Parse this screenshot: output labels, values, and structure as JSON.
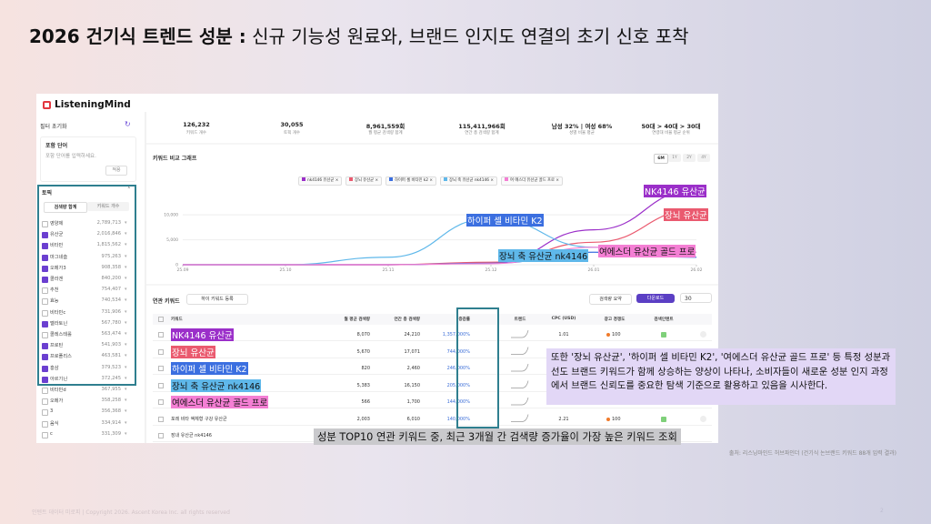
{
  "header": {
    "title_bold": "2026 건기식 트렌드 성분 :",
    "title_rest": "신규 기능성 원료와, 브랜드 인지도 연결의 초기 신호 포착"
  },
  "app": {
    "logo": "ListeningMind",
    "sidebar": {
      "reset": "필터 초기화",
      "include_label": "포함 단어",
      "include_placeholder": "포함 단어를 입력하세요.",
      "apply": "적용",
      "topic_label": "토픽",
      "tabs": [
        "검색량 합계",
        "키워드 개수"
      ],
      "topics": [
        {
          "name": "영양제",
          "value": "2,789,713",
          "checked": false
        },
        {
          "name": "유산균",
          "value": "2,016,846",
          "checked": true
        },
        {
          "name": "비타민",
          "value": "1,815,562",
          "checked": true
        },
        {
          "name": "마그네슘",
          "value": "975,263",
          "checked": true
        },
        {
          "name": "오메가3",
          "value": "908,358",
          "checked": true
        },
        {
          "name": "콜라겐",
          "value": "840,200",
          "checked": true
        },
        {
          "name": "추천",
          "value": "754,407",
          "checked": false
        },
        {
          "name": "효능",
          "value": "740,534",
          "checked": false
        },
        {
          "name": "비타민c",
          "value": "731,906",
          "checked": false
        },
        {
          "name": "멜라토닌",
          "value": "567,780",
          "checked": true
        },
        {
          "name": "콜레스테롤",
          "value": "563,474",
          "checked": false
        },
        {
          "name": "프로틴",
          "value": "541,903",
          "checked": true
        },
        {
          "name": "프로폴리스",
          "value": "463,581",
          "checked": true
        },
        {
          "name": "홍삼",
          "value": "379,523",
          "checked": true
        },
        {
          "name": "아르기닌",
          "value": "372,245",
          "checked": true
        },
        {
          "name": "비타민d",
          "value": "367,955",
          "checked": false
        },
        {
          "name": "오메가",
          "value": "358,258",
          "checked": false
        },
        {
          "name": "3",
          "value": "356,368",
          "checked": false
        },
        {
          "name": "음식",
          "value": "334,914",
          "checked": false
        },
        {
          "name": "c",
          "value": "331,309",
          "checked": false
        }
      ]
    },
    "stats": [
      {
        "value": "126,232",
        "label": "키워드 개수"
      },
      {
        "value": "30,055",
        "label": "토픽 개수"
      },
      {
        "value": "8,961,559회",
        "label": "월 평균 검색량 합계"
      },
      {
        "value": "115,411,966회",
        "label": "연간 총 검색량 합계"
      },
      {
        "value": "남성 32% | 여성 68%",
        "label": "성별 비율 평균"
      },
      {
        "value": "50대 > 40대 > 30대",
        "label": "연령대 비율 평균 순위"
      }
    ],
    "table": {
      "title": "연관 키워드",
      "register_button": "하이 키워드 등록",
      "summary_button": "검색량 요약",
      "download_button": "다운로드",
      "page_size": "30",
      "columns": [
        "키워드",
        "월 평균 검색량",
        "연간 총 검색량",
        "증감률",
        "트렌드",
        "CPC (USD)",
        "광고 경쟁도",
        "검색인텐트"
      ],
      "rows": [
        [
          "NK4146 유산균",
          "8,070",
          "24,210",
          "1,357,000%",
          "1.01",
          "100"
        ],
        [
          "장뇌 유산균",
          "5,670",
          "17,071",
          "744,000%",
          "",
          ""
        ],
        [
          "하이퍼 셀 비타민 K2",
          "820",
          "2,460",
          "246,000%",
          "",
          ""
        ],
        [
          "장뇌 축 유산균 nk4146",
          "5,383",
          "16,150",
          "205,000%",
          "",
          ""
        ],
        [
          "여에스더 유산균 골드 프로",
          "566",
          "1,700",
          "144,000%",
          "",
          ""
        ],
        [
          "포레 비타 액체형 구강 유산균",
          "2,003",
          "6,010",
          "140,000%",
          "2.21",
          "100"
        ],
        [
          "장내 유산균 nk4146",
          "",
          "",
          "",
          "",
          ""
        ]
      ]
    }
  },
  "chart_data": {
    "type": "line",
    "title": "키워드 비교 그래프",
    "periods": [
      "6M",
      "1Y",
      "2Y",
      "4Y"
    ],
    "x": [
      "25.09",
      "25.10",
      "25.11",
      "25.12",
      "26.01",
      "26.02"
    ],
    "ylim": [
      0,
      17500
    ],
    "yticks": [
      0,
      {
        "value": 5000,
        "label": "5,000"
      },
      {
        "value": 10000,
        "label": "10,000"
      }
    ],
    "series": [
      {
        "name": "nk4146 유산균",
        "color": "#9b2fc9",
        "values": [
          0,
          0,
          0,
          300,
          7000,
          15000
        ]
      },
      {
        "name": "장뇌 유산균",
        "color": "#ea5a6f",
        "values": [
          0,
          0,
          0,
          500,
          4500,
          11000
        ]
      },
      {
        "name": "하이퍼 셀 비타민 k2",
        "color": "#3b6fe0",
        "values": [
          0,
          0,
          0,
          300,
          2500,
          1500
        ]
      },
      {
        "name": "장뇌 축 유산균 nk4146",
        "color": "#5fb8ea",
        "values": [
          0,
          0,
          1500,
          9300,
          3500,
          2500
        ]
      },
      {
        "name": "여 에스더 유산균 골드 프로",
        "color": "#f47fd4",
        "values": [
          0,
          0,
          0,
          200,
          3500,
          2500
        ]
      }
    ],
    "annotations": [
      "NK4146 유산균",
      "장뇌 유산균",
      "하이퍼 셀 비타민 K2",
      "장뇌 축 유산균 nk4146",
      "여에스더 유산균 골드 프로"
    ]
  },
  "callout": "또한 '장뇌 유산균', '하이퍼 셀 비타민 K2', '여에스더 유산균 골드 프로' 등 특정 성분과 선도 브랜드 키워드가 함께 상승하는 양상이 나타나, 소비자들이 새로운 성분 인지 과정에서 브랜드 신뢰도를 중요한 탐색 기준으로 활용하고 있음을 시사한다.",
  "caption": "성분 TOP10 연관 키워드 중, 최근 3개월 간 검색량 증가율이 가장 높은 키워드 조회",
  "source": "출처: 리스닝마인드 허브파인더 (건기식 논브랜드 키워드 88개 입력 결과)",
  "footer": "인텐트 데이터 미로피 | Copyright 2026. Ascent Korea Inc. all rights reserved",
  "page_number": "2"
}
